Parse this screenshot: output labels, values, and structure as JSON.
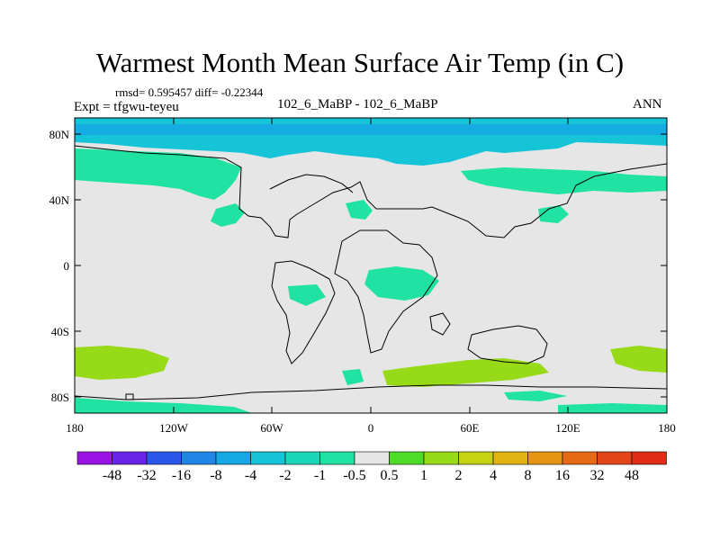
{
  "title": "Warmest Month Mean Surface Air Temp (in C)",
  "stats": {
    "text": "rmsd= 0.595457 diff= -0.22344"
  },
  "experiment": {
    "text": "Expt = tfgwu-teyeu"
  },
  "subtitle": "102_6_MaBP - 102_6_MaBP",
  "season": "ANN",
  "axes": {
    "lat_ticks": [
      "80N",
      "40N",
      "0",
      "40S",
      "80S"
    ],
    "lon_ticks": [
      "180",
      "120W",
      "60W",
      "0",
      "60E",
      "120E",
      "180"
    ]
  },
  "colorbar": {
    "labels": [
      "-48",
      "-32",
      "-16",
      "-8",
      "-4",
      "-2",
      "-1",
      "-0.5",
      "0.5",
      "1",
      "2",
      "4",
      "8",
      "16",
      "32",
      "48"
    ],
    "colors": [
      "#9a13e6",
      "#6a23e8",
      "#2a56ea",
      "#1f86e8",
      "#14a8e4",
      "#16c4d8",
      "#1ad7b7",
      "#20e3a3",
      "#e6e6e6",
      "#4edc28",
      "#96da18",
      "#c8d214",
      "#e0b412",
      "#e69414",
      "#e66a16",
      "#e4441a",
      "#e02c14"
    ]
  },
  "map": {
    "background_color": "#e6e6e6",
    "coastline_color": "#000000",
    "frame_color": "#000000"
  }
}
